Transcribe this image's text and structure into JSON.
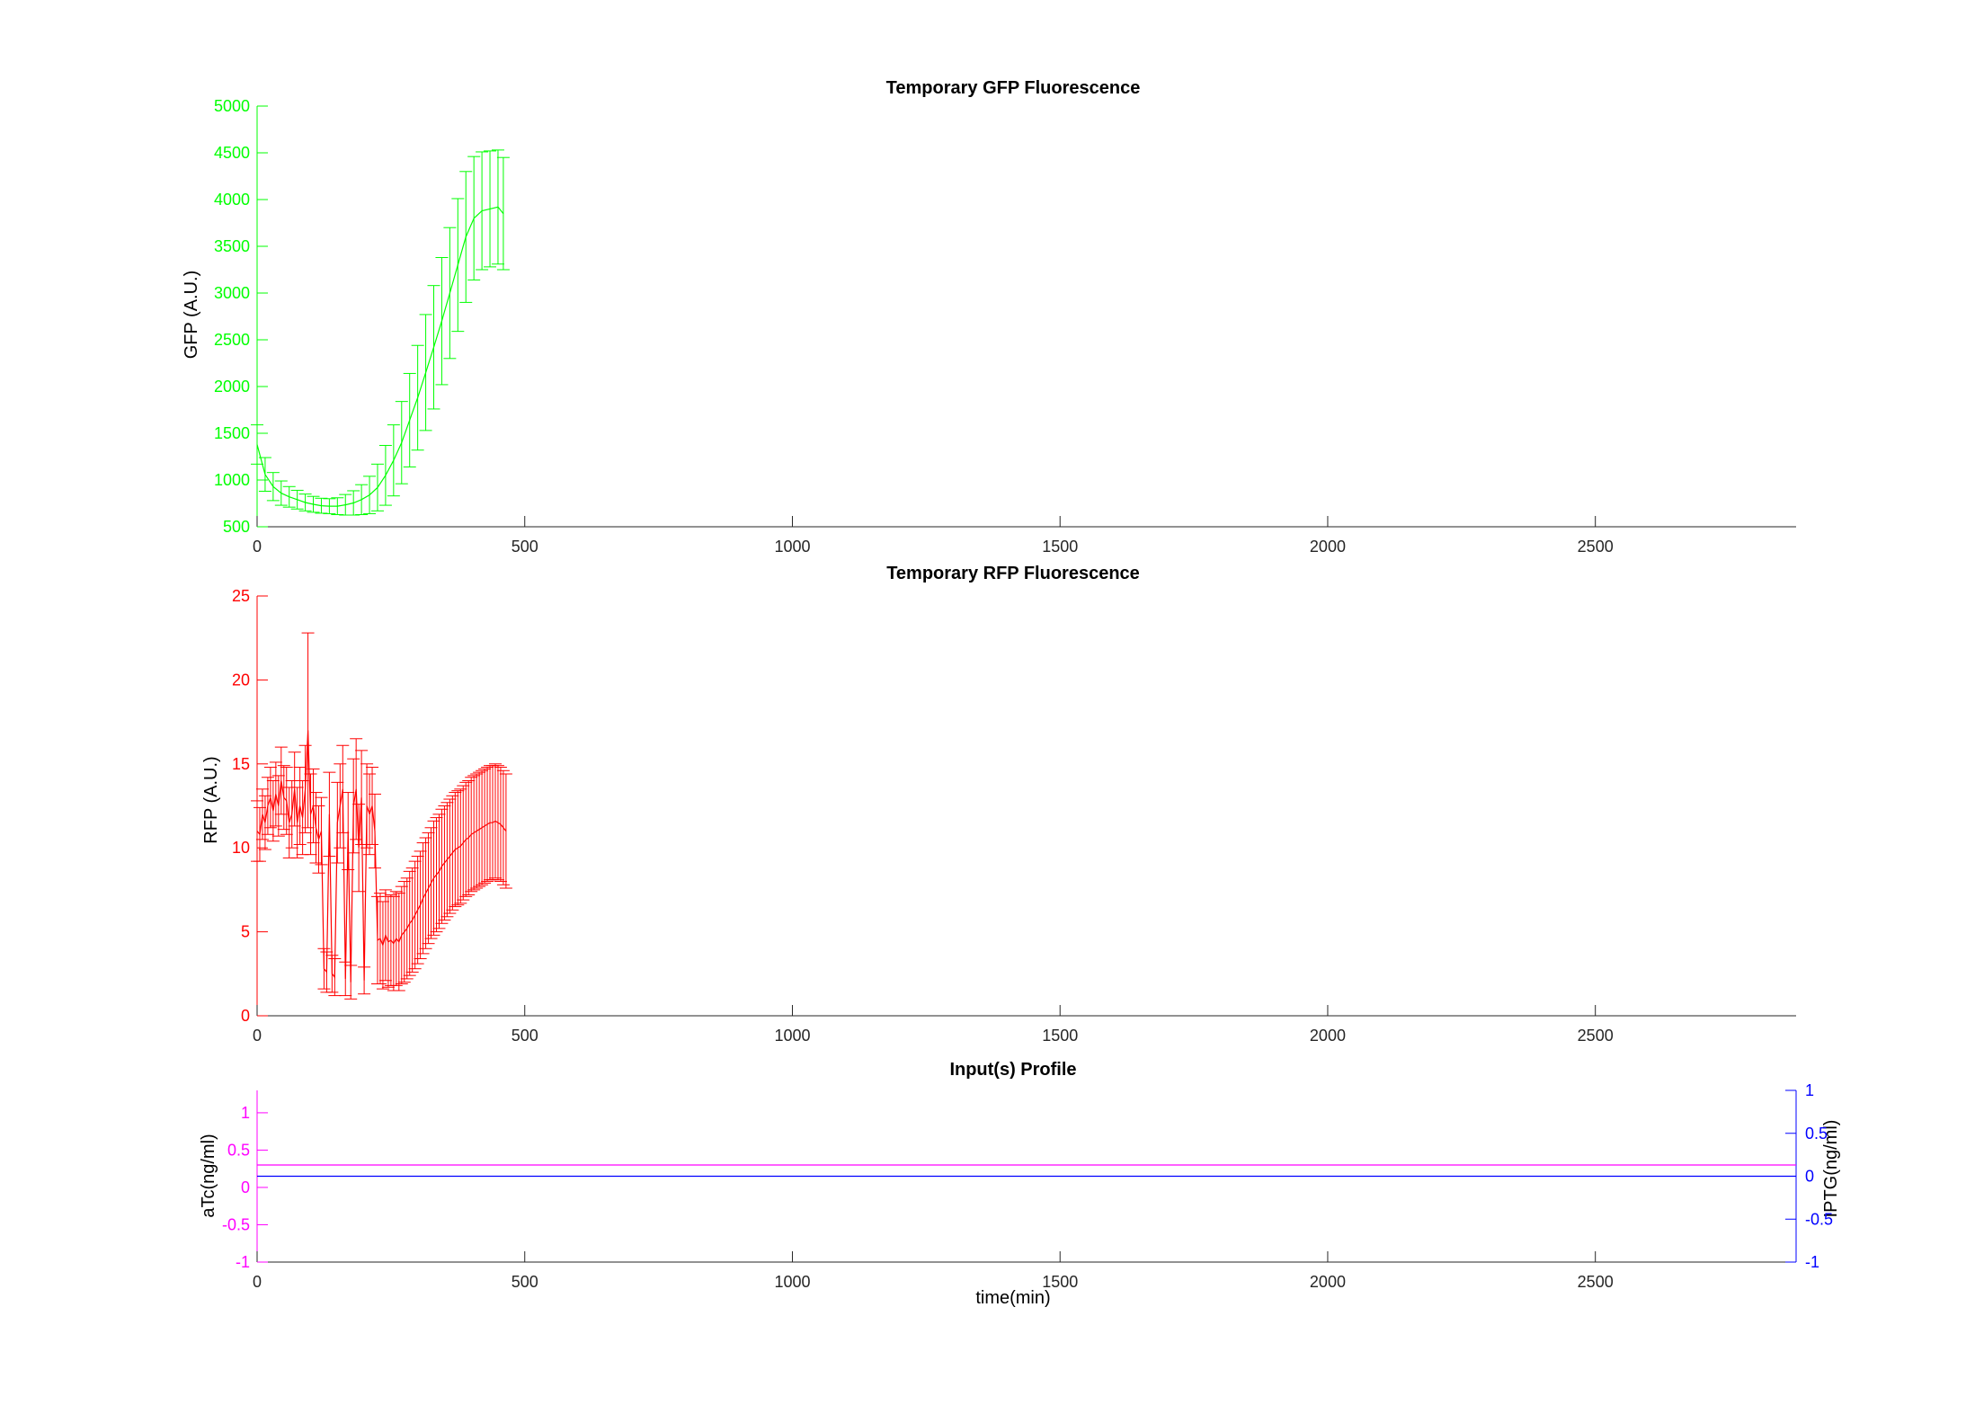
{
  "chart_data": [
    {
      "type": "line",
      "title": "Temporary GFP Fluorescence",
      "xlabel": "",
      "ylabel": "GFP (A.U.)",
      "xlim": [
        0,
        2875
      ],
      "ylim": [
        500,
        5000
      ],
      "x_ticks": [
        "0",
        "500",
        "1000",
        "1500",
        "2000",
        "2500"
      ],
      "y_ticks": [
        "500",
        "1000",
        "1500",
        "2000",
        "2500",
        "3000",
        "3500",
        "4000",
        "4500",
        "5000"
      ],
      "color": "#00ff00",
      "grid": false,
      "series": [
        {
          "error_bars": true,
          "x": [
            0,
            15,
            30,
            45,
            60,
            75,
            90,
            105,
            120,
            135,
            150,
            165,
            180,
            195,
            210,
            225,
            240,
            255,
            270,
            285,
            300,
            315,
            330,
            345,
            360,
            375,
            390,
            405,
            420,
            435,
            450,
            460
          ],
          "y": [
            1380,
            1060,
            930,
            860,
            820,
            790,
            760,
            740,
            725,
            720,
            720,
            735,
            755,
            790,
            840,
            920,
            1050,
            1210,
            1400,
            1640,
            1880,
            2150,
            2420,
            2700,
            3000,
            3300,
            3600,
            3800,
            3880,
            3900,
            3920,
            3850
          ],
          "err": [
            210,
            180,
            150,
            130,
            110,
            100,
            90,
            85,
            80,
            80,
            90,
            110,
            130,
            160,
            200,
            250,
            320,
            380,
            440,
            500,
            560,
            620,
            660,
            680,
            700,
            710,
            700,
            660,
            630,
            620,
            610,
            600
          ]
        }
      ]
    },
    {
      "type": "line",
      "title": "Temporary RFP Fluorescence",
      "xlabel": "",
      "ylabel": "RFP (A.U.)",
      "xlim": [
        0,
        2875
      ],
      "ylim": [
        0,
        25
      ],
      "x_ticks": [
        "0",
        "500",
        "1000",
        "1500",
        "2000",
        "2500"
      ],
      "y_ticks": [
        "0",
        "5",
        "10",
        "15",
        "20",
        "25"
      ],
      "color": "#ff0000",
      "grid": false,
      "series": [
        {
          "error_bars": true,
          "x": [
            0,
            5,
            10,
            15,
            20,
            25,
            30,
            35,
            40,
            45,
            50,
            55,
            60,
            65,
            70,
            75,
            80,
            85,
            90,
            95,
            100,
            105,
            110,
            115,
            120,
            125,
            130,
            135,
            140,
            145,
            150,
            155,
            160,
            165,
            170,
            175,
            180,
            185,
            190,
            195,
            200,
            205,
            210,
            215,
            220,
            225,
            230,
            235,
            240,
            245,
            250,
            255,
            260,
            265,
            270,
            275,
            280,
            285,
            290,
            295,
            300,
            305,
            310,
            315,
            320,
            325,
            330,
            335,
            340,
            345,
            350,
            355,
            360,
            365,
            370,
            375,
            380,
            385,
            390,
            395,
            400,
            405,
            410,
            415,
            420,
            425,
            430,
            435,
            440,
            445,
            450,
            455,
            460,
            465
          ],
          "y": [
            11.0,
            10.8,
            12.0,
            11.5,
            12.5,
            13.0,
            12.2,
            13.2,
            12.5,
            14.0,
            13.0,
            12.8,
            11.5,
            12.0,
            13.5,
            11.5,
            12.5,
            11.8,
            13.5,
            17.0,
            12.0,
            12.5,
            11.2,
            10.5,
            11.0,
            2.8,
            2.6,
            12.0,
            2.5,
            2.3,
            11.5,
            12.5,
            13.5,
            2.2,
            11.0,
            2.0,
            12.5,
            13.5,
            10.0,
            13.0,
            2.1,
            12.5,
            12.0,
            12.5,
            11.0,
            4.5,
            4.6,
            4.2,
            4.8,
            4.4,
            4.5,
            4.3,
            4.6,
            4.4,
            4.8,
            5.0,
            5.2,
            5.5,
            5.7,
            6.0,
            6.3,
            6.6,
            7.0,
            7.3,
            7.6,
            7.9,
            8.2,
            8.4,
            8.6,
            8.9,
            9.1,
            9.3,
            9.5,
            9.7,
            9.9,
            10.0,
            10.1,
            10.3,
            10.5,
            10.6,
            10.8,
            10.9,
            11.0,
            11.1,
            11.2,
            11.3,
            11.4,
            11.5,
            11.5,
            11.6,
            11.5,
            11.4,
            11.2,
            11.0
          ],
          "err": [
            1.8,
            1.6,
            1.5,
            1.6,
            1.7,
            1.8,
            1.8,
            1.9,
            1.8,
            2.0,
            1.9,
            2.0,
            2.1,
            2.0,
            2.2,
            2.1,
            2.3,
            2.2,
            2.6,
            5.8,
            2.4,
            2.2,
            2.1,
            2.0,
            2.0,
            1.2,
            1.2,
            2.5,
            1.1,
            1.1,
            2.4,
            2.5,
            2.6,
            1.0,
            2.3,
            1.0,
            2.8,
            3.0,
            2.6,
            2.8,
            0.8,
            2.5,
            2.4,
            2.3,
            2.2,
            2.6,
            2.7,
            2.6,
            2.7,
            2.7,
            2.7,
            2.8,
            2.8,
            2.9,
            2.9,
            3.0,
            3.0,
            3.1,
            3.1,
            3.2,
            3.2,
            3.2,
            3.3,
            3.3,
            3.3,
            3.3,
            3.4,
            3.4,
            3.4,
            3.4,
            3.4,
            3.4,
            3.4,
            3.4,
            3.4,
            3.4,
            3.4,
            3.4,
            3.4,
            3.4,
            3.4,
            3.4,
            3.4,
            3.4,
            3.4,
            3.4,
            3.4,
            3.4,
            3.4,
            3.4,
            3.4,
            3.4,
            3.4,
            3.4
          ]
        }
      ]
    },
    {
      "type": "line",
      "title": "Input(s) Profile",
      "xlabel": "time(min)",
      "ylabel": "aTc(ng/ml)",
      "ylabel_right": "IPTG(ng/ml)",
      "xlim": [
        0,
        2875
      ],
      "ylim": [
        -1,
        1.3
      ],
      "ylim_right": [
        -1,
        1
      ],
      "x_ticks": [
        "0",
        "500",
        "1000",
        "1500",
        "2000",
        "2500"
      ],
      "y_ticks": [
        "-1",
        "-0.5",
        "0",
        "0.5",
        "1"
      ],
      "y_ticks_right": [
        "-1",
        "-0.5",
        "0",
        "0.5",
        "1"
      ],
      "grid": false,
      "series": [
        {
          "axis": "left",
          "color": "#ff00ff",
          "x": [
            0,
            2875
          ],
          "y": [
            0.3,
            0.3
          ]
        },
        {
          "axis": "right",
          "color": "#0000ff",
          "x": [
            0,
            2875
          ],
          "y": [
            0,
            0
          ]
        }
      ]
    }
  ]
}
